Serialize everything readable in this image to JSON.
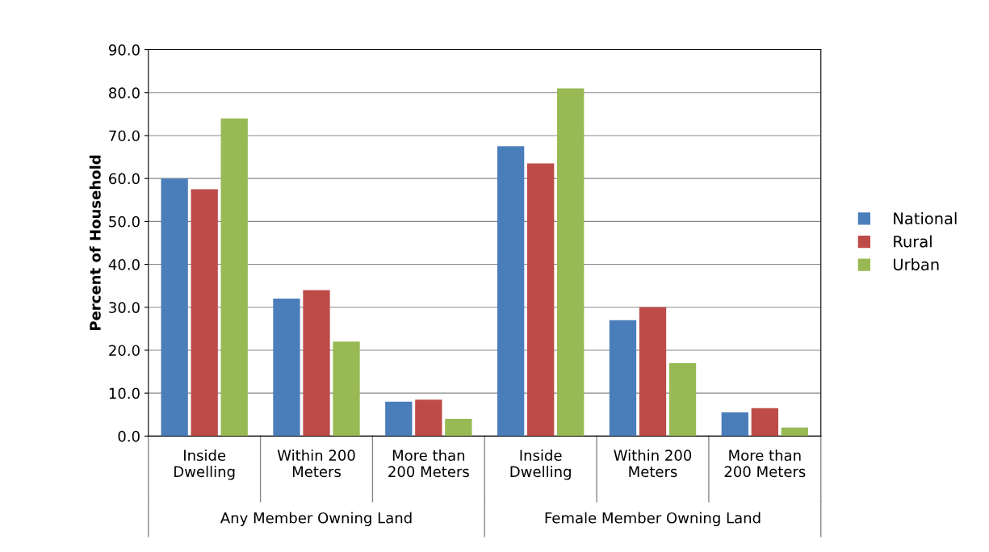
{
  "chart_data": {
    "type": "bar",
    "ylabel": "Percent of Household",
    "categories": [
      "Inside\nDwelling",
      "Within 200\nMeters",
      "More than\n200 Meters",
      "Inside\nDwelling",
      "Within 200\nMeters",
      "More than\n200 Meters"
    ],
    "series": [
      {
        "name": "National",
        "color": "#4a7ebb",
        "values": [
          60.0,
          32.0,
          8.0,
          67.5,
          27.0,
          5.5
        ]
      },
      {
        "name": "Rural",
        "color": "#be4b48",
        "values": [
          57.5,
          34.0,
          8.5,
          63.5,
          30.0,
          6.5
        ]
      },
      {
        "name": "Urban",
        "color": "#98b954",
        "values": [
          74.0,
          22.0,
          4.0,
          81.0,
          17.0,
          2.0
        ]
      }
    ],
    "ylim": [
      0,
      90
    ],
    "yticks": [
      {
        "value": 0,
        "label": "0.0"
      },
      {
        "value": 10,
        "label": "10.0"
      },
      {
        "value": 20,
        "label": "20.0"
      },
      {
        "value": 30,
        "label": "30.0"
      },
      {
        "value": 40,
        "label": "40.0"
      },
      {
        "value": 50,
        "label": "50.0"
      },
      {
        "value": 60,
        "label": "60.0"
      },
      {
        "value": 70,
        "label": "70.0"
      },
      {
        "value": 80,
        "label": "80.0"
      },
      {
        "value": 90,
        "label": "90.0"
      }
    ],
    "grid": "y",
    "legend": "right",
    "annotations": [
      "Any Member Owning Land",
      "Female Member Owning Land"
    ]
  }
}
